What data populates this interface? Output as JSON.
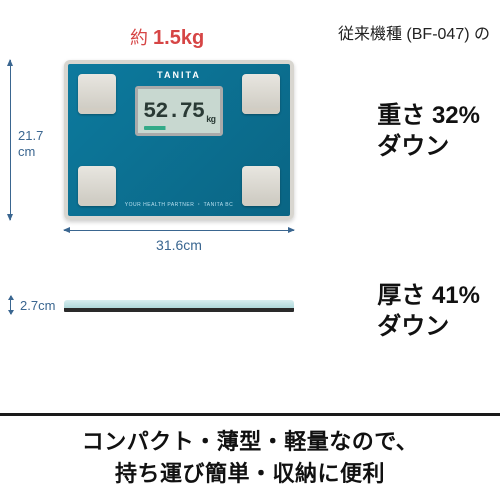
{
  "colors": {
    "accent_red": "#d64545",
    "dim_blue": "#3a6690",
    "scale_blue": "#0d7a9e",
    "scale_border": "#d8d6d0",
    "lcd_bg": "#c8d8d0",
    "text_dark": "#111111"
  },
  "weight": {
    "prefix": "約 ",
    "value": "1.5kg"
  },
  "comparison_header": "従来機種 (BF-047) の",
  "scale": {
    "brand": "TANITA",
    "lcd_value": "52.75",
    "lcd_unit": "kg",
    "bottom_label": "YOUR HEALTH PARTNER ・ TANITA BC"
  },
  "dimensions": {
    "height_cm": "21.7",
    "height_unit": "cm",
    "width_label": "31.6cm",
    "depth_label": "2.7cm"
  },
  "stats": {
    "weight_line1_a": "重さ ",
    "weight_line1_b": "32%",
    "weight_line2": "ダウン",
    "thick_line1_a": "厚さ ",
    "thick_line1_b": "41%",
    "thick_line2": "ダウン"
  },
  "footer": {
    "line1": "コンパクト・薄型・軽量なので、",
    "line2": "持ち運び簡単・収納に便利"
  }
}
